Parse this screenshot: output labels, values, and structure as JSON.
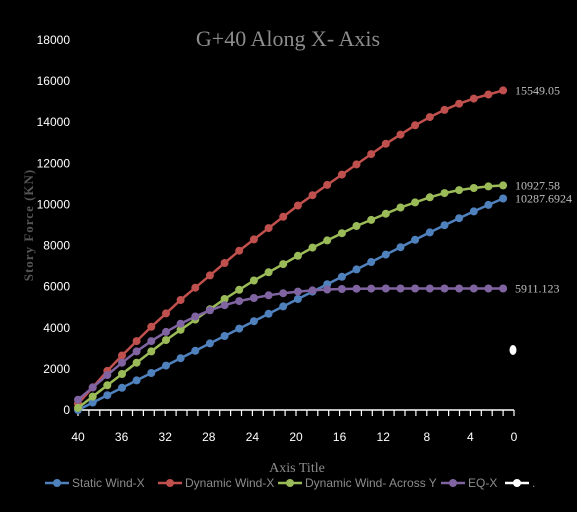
{
  "chart_data": {
    "type": "line",
    "title": "G+40 Along X- Axis",
    "xlabel": "Axis Title",
    "ylabel": "Story Force (KN)",
    "x_reversed": true,
    "xlim": [
      40,
      0
    ],
    "ylim": [
      0,
      18000
    ],
    "yticks": [
      "0",
      "2000",
      "4000",
      "6000",
      "8000",
      "10000",
      "12000",
      "14000",
      "16000",
      "18000"
    ],
    "xtick_labels": [
      "40",
      "36",
      "32",
      "28",
      "24",
      "20",
      "16",
      "12",
      "8",
      "4",
      "0"
    ],
    "legend_position": "bottom",
    "series": [
      {
        "name": "Static Wind-X",
        "color": "#4f81bd",
        "x_range": [
          40,
          1
        ],
        "values": [
          0,
          360,
          720,
          1080,
          1440,
          1800,
          2160,
          2520,
          2880,
          3240,
          3600,
          3960,
          4320,
          4680,
          5040,
          5400,
          5760,
          6120,
          6480,
          6840,
          7200,
          7560,
          7920,
          8280,
          8640,
          8990,
          9330,
          9660,
          9980,
          10287.6924
        ],
        "end_label": "10287.6924"
      },
      {
        "name": "Dynamic Wind-X",
        "color": "#c0504d",
        "x_range": [
          40,
          1
        ],
        "values": [
          300,
          1100,
          1900,
          2650,
          3350,
          4050,
          4700,
          5350,
          5950,
          6550,
          7150,
          7750,
          8300,
          8850,
          9400,
          9950,
          10450,
          10950,
          11450,
          11950,
          12450,
          12950,
          13400,
          13850,
          14250,
          14600,
          14900,
          15150,
          15350,
          15549.05
        ],
        "end_label": "15549.05"
      },
      {
        "name": "Dynamic Wind- Across Y",
        "color": "#9bbb59",
        "x_range": [
          40,
          1
        ],
        "values": [
          100,
          650,
          1200,
          1750,
          2300,
          2850,
          3400,
          3900,
          4400,
          4900,
          5400,
          5850,
          6300,
          6700,
          7100,
          7500,
          7900,
          8250,
          8600,
          8950,
          9250,
          9550,
          9850,
          10100,
          10350,
          10550,
          10700,
          10800,
          10880,
          10927.58
        ],
        "end_label": "10927.58"
      },
      {
        "name": "EQ-X",
        "color": "#8064a2",
        "x_range": [
          40,
          1
        ],
        "values": [
          500,
          1100,
          1700,
          2300,
          2850,
          3350,
          3800,
          4200,
          4550,
          4850,
          5100,
          5300,
          5450,
          5580,
          5680,
          5760,
          5820,
          5860,
          5885,
          5900,
          5908,
          5911,
          5911,
          5911,
          5911,
          5911,
          5911,
          5911,
          5911,
          5911.123
        ],
        "end_label": "5911.123"
      }
    ],
    "extra_legend": {
      "name": ".",
      "color": "#ffffff"
    },
    "stray_point": {
      "x": 0,
      "y": 3000,
      "color": "#ffffff"
    }
  }
}
